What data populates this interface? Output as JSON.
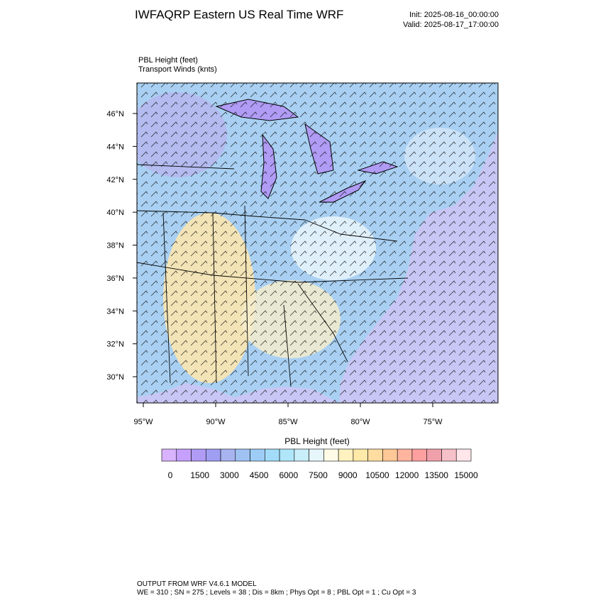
{
  "header": {
    "title": "IWFAQRP Eastern US Real Time WRF",
    "init": "Init: 2025-08-16_00:00:00",
    "valid": "Valid: 2025-08-17_17:00:00"
  },
  "fields": {
    "primary": "PBL Height   (feet)",
    "secondary": "Transport Winds   (knts)"
  },
  "map": {
    "lat_ticks": [
      {
        "value": 46,
        "label": "46°N"
      },
      {
        "value": 44,
        "label": "44°N"
      },
      {
        "value": 42,
        "label": "42°N"
      },
      {
        "value": 40,
        "label": "40°N"
      },
      {
        "value": 38,
        "label": "38°N"
      },
      {
        "value": 36,
        "label": "36°N"
      },
      {
        "value": 34,
        "label": "34°N"
      },
      {
        "value": 32,
        "label": "32°N"
      },
      {
        "value": 30,
        "label": "30°N"
      }
    ],
    "lon_ticks": [
      {
        "value": -95,
        "label": "95°W"
      },
      {
        "value": -90,
        "label": "90°W"
      },
      {
        "value": -85,
        "label": "85°W"
      },
      {
        "value": -80,
        "label": "80°W"
      },
      {
        "value": -75,
        "label": "75°W"
      }
    ]
  },
  "colorbar": {
    "title": "PBL Height  (feet)",
    "ticks": [
      0,
      1500,
      3000,
      4500,
      6000,
      7500,
      9000,
      10500,
      12000,
      13500,
      15000
    ],
    "colors": [
      "#d9b3ff",
      "#c6a0ff",
      "#b09bf5",
      "#9f9ef2",
      "#a8b4f0",
      "#9fc2f2",
      "#9dcdf6",
      "#a3dcf8",
      "#b0e6fa",
      "#c8eefa",
      "#e6f6fb",
      "#fffbe6",
      "#fff2c0",
      "#ffe9a8",
      "#ffdca0",
      "#ffc896",
      "#ffb4a0",
      "#ffa0a0",
      "#f0a0aa",
      "#f5c0c8",
      "#ffe6ea"
    ]
  },
  "footer": {
    "line1": "OUTPUT FROM WRF V4.6.1 MODEL",
    "line2": "WE = 310 ; SN = 275 ; Levels = 38 ; Dis = 8km ; Phys Opt = 8 ; PBL Opt = 1 ; Cu Opt = 3"
  }
}
